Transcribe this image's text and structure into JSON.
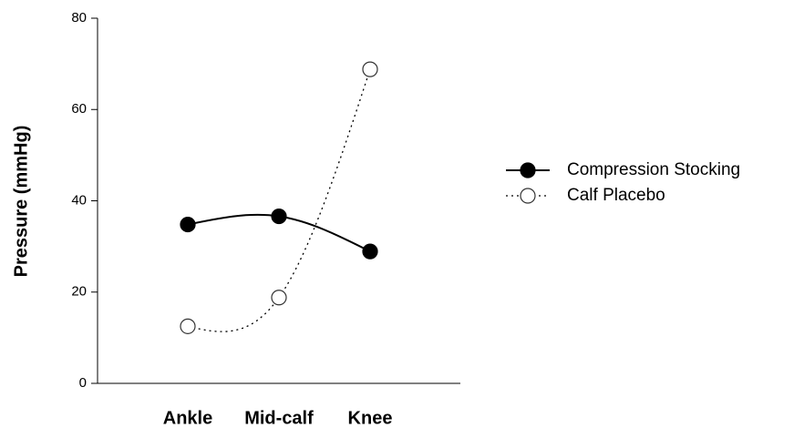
{
  "chart_data": {
    "type": "line",
    "categories": [
      "Ankle",
      "Mid-calf",
      "Knee"
    ],
    "y_label": "Pressure (mmHg)",
    "ylim": [
      0,
      80
    ],
    "yticks": [
      0,
      20,
      40,
      60,
      80
    ],
    "series": [
      {
        "name": "Compression Stocking",
        "color": "#000000",
        "marker_fill": "#000000",
        "line_style": "solid",
        "values": [
          34.8,
          36.6,
          28.9
        ]
      },
      {
        "name": "Calf Placebo",
        "color": "#000000",
        "marker_fill": "#ffffff",
        "line_style": "dotted",
        "values": [
          12.5,
          18.8,
          68.8
        ]
      }
    ],
    "legend": "right"
  }
}
